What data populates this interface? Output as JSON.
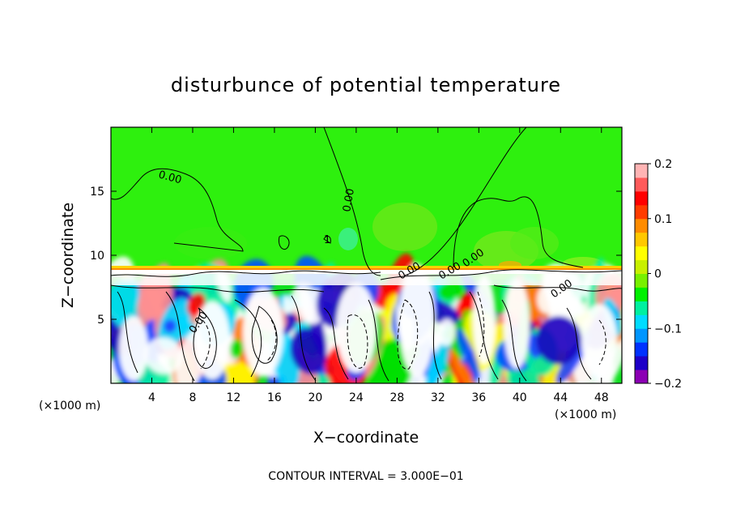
{
  "chart_data": {
    "type": "heatmap",
    "title": "disturbunce of potential temperature",
    "xlabel": "X−coordinate",
    "ylabel": "Z−coordinate",
    "x_unit": "(×1000 m)",
    "y_unit": "(×1000 m)",
    "xlim": [
      0,
      50
    ],
    "ylim": [
      0,
      20
    ],
    "x_ticks": [
      4,
      8,
      12,
      16,
      20,
      24,
      28,
      32,
      36,
      40,
      44,
      48
    ],
    "y_ticks": [
      5,
      10,
      15
    ],
    "colorbar": {
      "range": [
        -0.2,
        0.2
      ],
      "ticks": [
        0.2,
        0.1,
        0,
        -0.1,
        -0.2
      ],
      "tick_labels": [
        "0.2",
        "0.1",
        "0",
        "−0.1",
        "−0.2"
      ],
      "colors": [
        "#8c00b4",
        "#1e00c8",
        "#0032ff",
        "#0096ff",
        "#00dcff",
        "#00f0a0",
        "#00f000",
        "#78f000",
        "#c8f000",
        "#ffff00",
        "#ffc800",
        "#ff8c00",
        "#ff3c00",
        "#ff0000",
        "#ff5a5a",
        "#ffb4b4"
      ]
    },
    "contour_labels": [
      "0.00",
      "0.00",
      "0.00",
      "0.00",
      "0.00",
      "1",
      "0.00",
      "0.00"
    ],
    "footer": "CONTOUR INTERVAL = 3.000E−01"
  }
}
